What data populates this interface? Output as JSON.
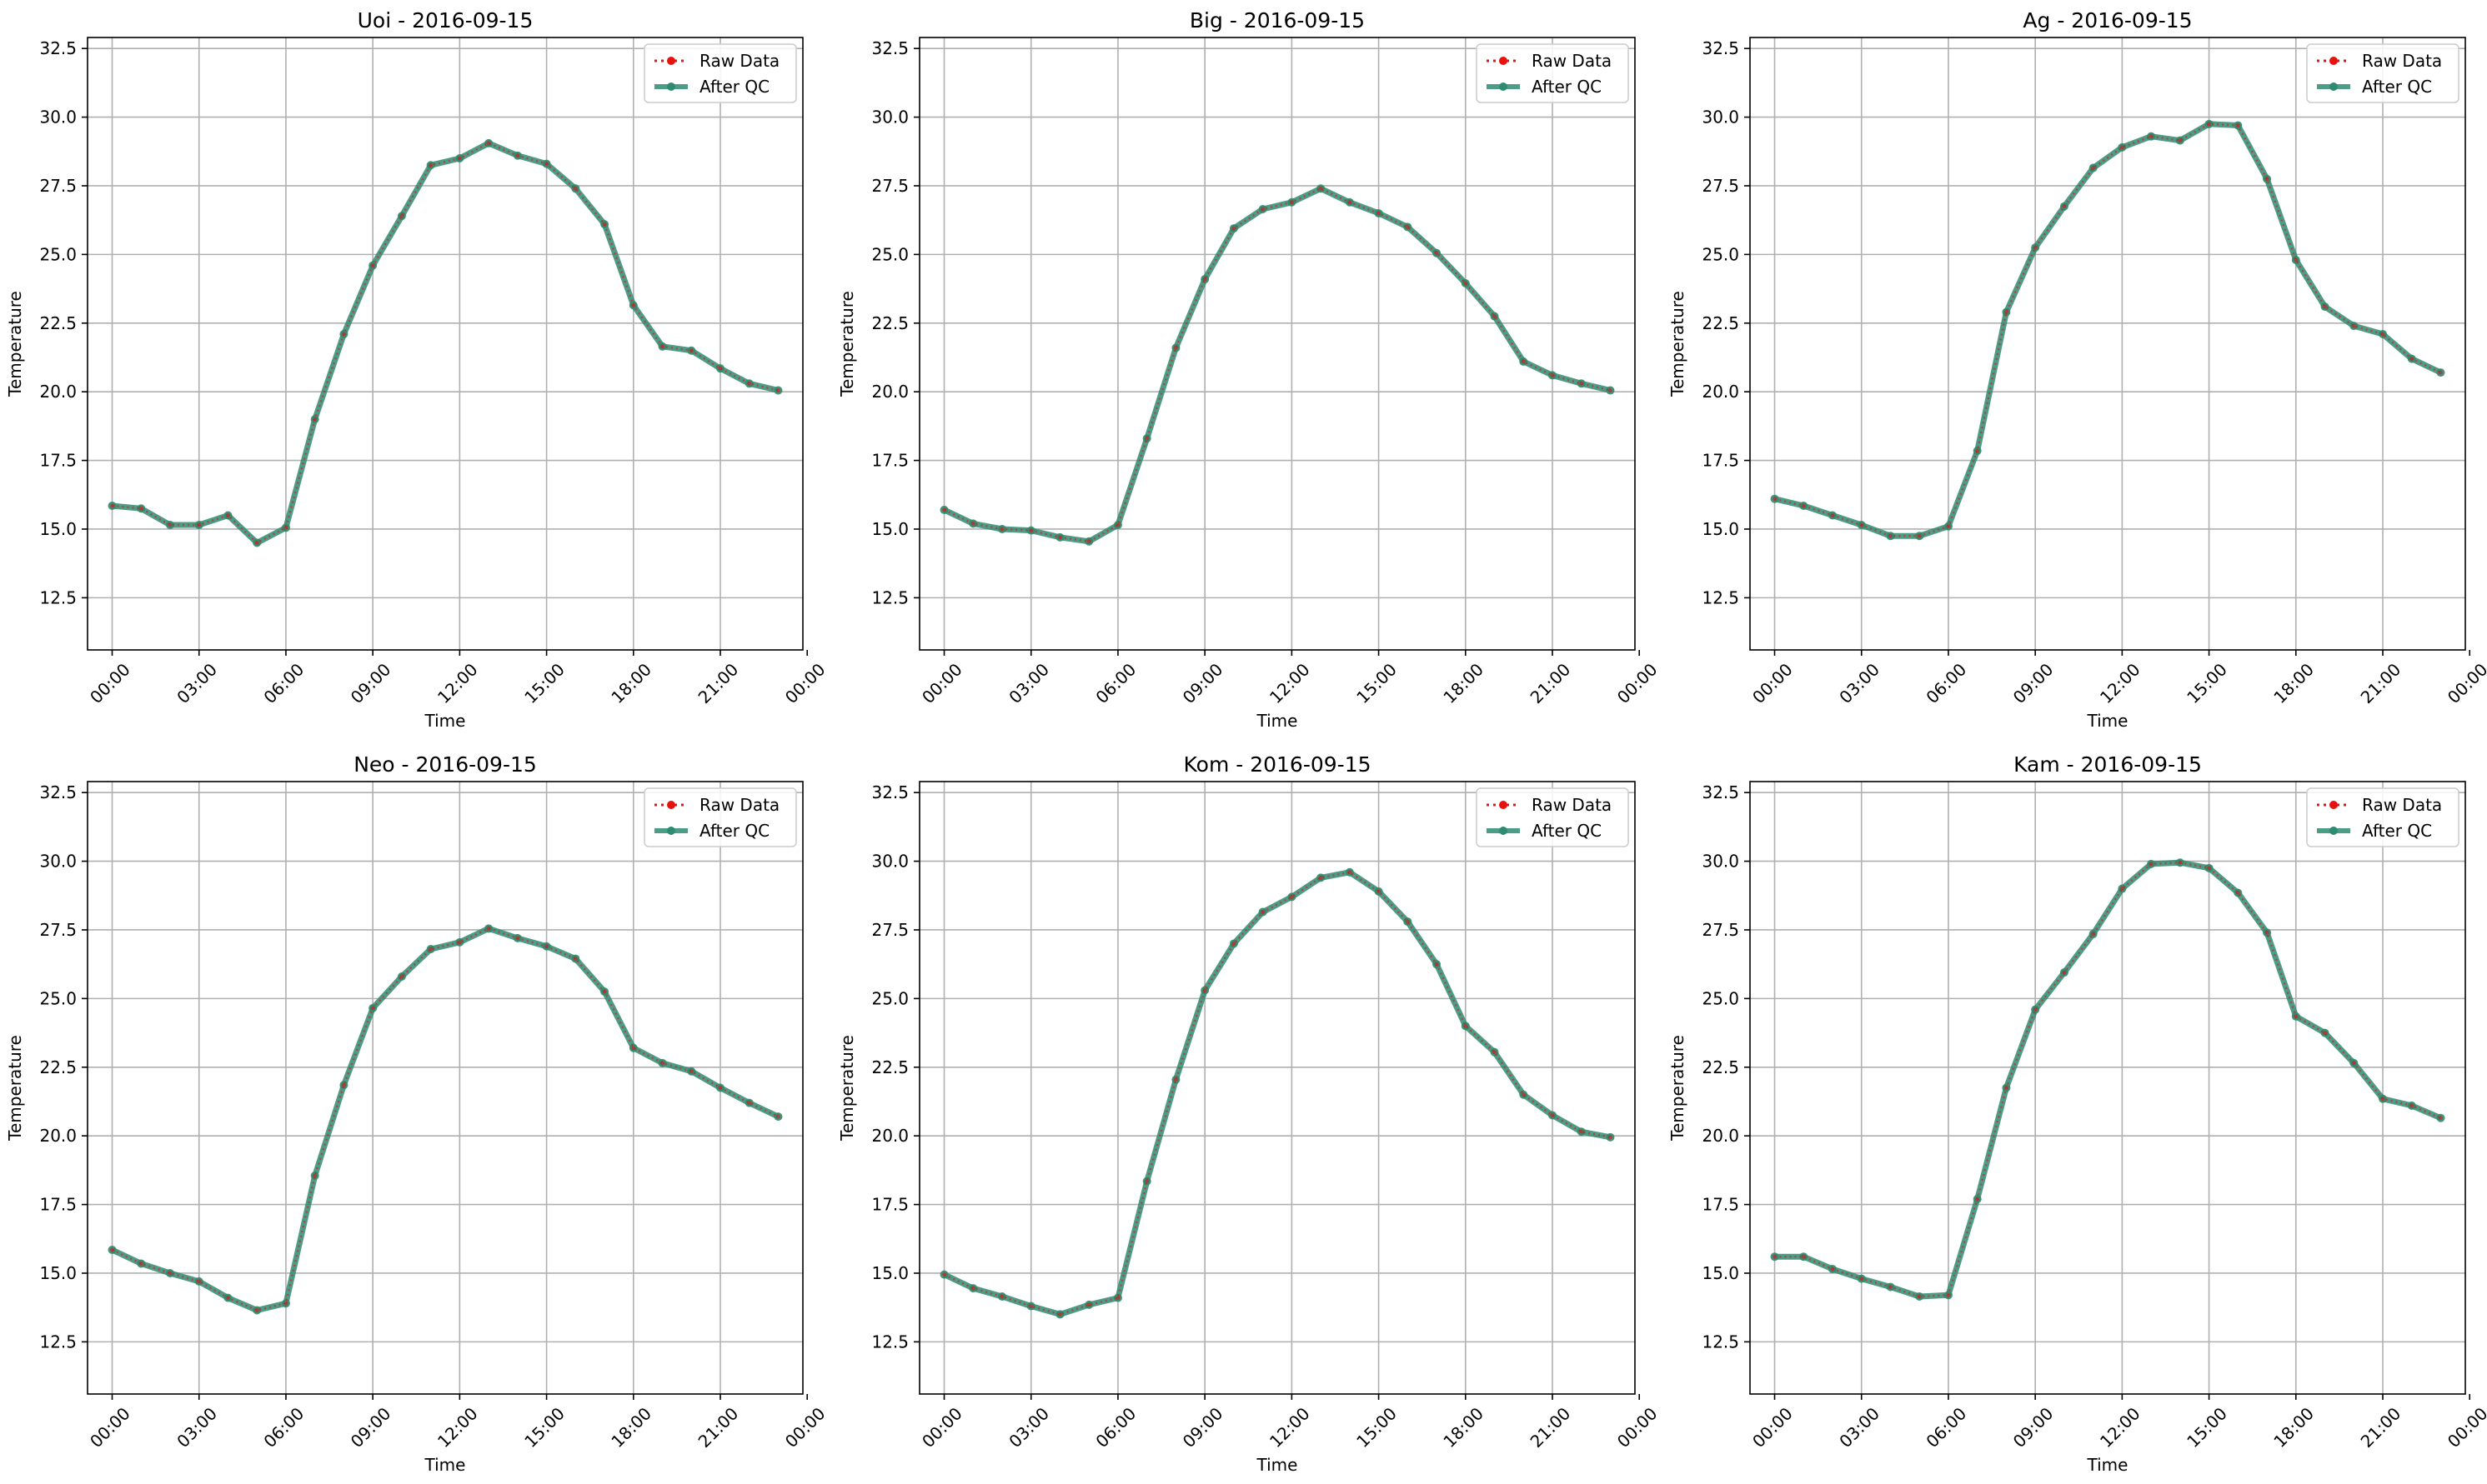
{
  "figure": {
    "background": "#ffffff"
  },
  "style": {
    "raw_color": "#e8120c",
    "qc_color": "#2e8b72",
    "grid_color": "#b0b0b0"
  },
  "chart_data": [
    {
      "type": "line",
      "title": "Uoi - 2016-09-15",
      "xlabel": "Time",
      "ylabel": "Temperature",
      "ylim": [
        10.6,
        32.9
      ],
      "xlim": [
        -0.85,
        23.85
      ],
      "yticks": [
        12.5,
        15.0,
        17.5,
        20.0,
        22.5,
        25.0,
        27.5,
        30.0,
        32.5
      ],
      "xticks": [
        {
          "x": 0,
          "label": "00:00"
        },
        {
          "x": 3,
          "label": "03:00"
        },
        {
          "x": 6,
          "label": "06:00"
        },
        {
          "x": 9,
          "label": "09:00"
        },
        {
          "x": 12,
          "label": "12:00"
        },
        {
          "x": 15,
          "label": "15:00"
        },
        {
          "x": 18,
          "label": "18:00"
        },
        {
          "x": 21,
          "label": "21:00"
        },
        {
          "x": 24,
          "label": "00:00"
        }
      ],
      "grid": true,
      "legend": "top-right",
      "x": [
        0,
        1,
        2,
        3,
        4,
        5,
        6,
        7,
        8,
        9,
        10,
        11,
        12,
        13,
        14,
        15,
        16,
        17,
        18,
        19,
        20,
        21,
        22,
        23
      ],
      "series": [
        {
          "name": "Raw Data",
          "values": [
            15.85,
            15.75,
            15.15,
            15.15,
            15.5,
            14.5,
            15.05,
            19.0,
            22.1,
            24.6,
            26.4,
            28.25,
            28.5,
            29.05,
            28.6,
            28.3,
            27.4,
            26.1,
            23.15,
            21.65,
            21.5,
            20.85,
            20.3,
            20.05
          ]
        },
        {
          "name": "After QC",
          "values": [
            15.85,
            15.75,
            15.15,
            15.15,
            15.5,
            14.5,
            15.05,
            19.0,
            22.1,
            24.6,
            26.4,
            28.25,
            28.5,
            29.05,
            28.6,
            28.3,
            27.4,
            26.1,
            23.15,
            21.65,
            21.5,
            20.85,
            20.3,
            20.05
          ]
        }
      ]
    },
    {
      "type": "line",
      "title": "Big - 2016-09-15",
      "xlabel": "Time",
      "ylabel": "Temperature",
      "ylim": [
        10.6,
        32.9
      ],
      "xlim": [
        -0.85,
        23.85
      ],
      "yticks": [
        12.5,
        15.0,
        17.5,
        20.0,
        22.5,
        25.0,
        27.5,
        30.0,
        32.5
      ],
      "xticks": [
        {
          "x": 0,
          "label": "00:00"
        },
        {
          "x": 3,
          "label": "03:00"
        },
        {
          "x": 6,
          "label": "06:00"
        },
        {
          "x": 9,
          "label": "09:00"
        },
        {
          "x": 12,
          "label": "12:00"
        },
        {
          "x": 15,
          "label": "15:00"
        },
        {
          "x": 18,
          "label": "18:00"
        },
        {
          "x": 21,
          "label": "21:00"
        },
        {
          "x": 24,
          "label": "00:00"
        }
      ],
      "grid": true,
      "legend": "top-right",
      "x": [
        0,
        1,
        2,
        3,
        4,
        5,
        6,
        7,
        8,
        9,
        10,
        11,
        12,
        13,
        14,
        15,
        16,
        17,
        18,
        19,
        20,
        21,
        22,
        23
      ],
      "series": [
        {
          "name": "Raw Data",
          "values": [
            15.7,
            15.2,
            15.0,
            14.95,
            14.7,
            14.55,
            15.15,
            18.3,
            21.6,
            24.1,
            25.95,
            26.65,
            26.9,
            27.4,
            26.9,
            26.5,
            26.0,
            25.05,
            23.95,
            22.75,
            21.1,
            20.6,
            20.3,
            20.05
          ]
        },
        {
          "name": "After QC",
          "values": [
            15.7,
            15.2,
            15.0,
            14.95,
            14.7,
            14.55,
            15.15,
            18.3,
            21.6,
            24.1,
            25.95,
            26.65,
            26.9,
            27.4,
            26.9,
            26.5,
            26.0,
            25.05,
            23.95,
            22.75,
            21.1,
            20.6,
            20.3,
            20.05
          ]
        }
      ]
    },
    {
      "type": "line",
      "title": "Ag - 2016-09-15",
      "xlabel": "Time",
      "ylabel": "Temperature",
      "ylim": [
        10.6,
        32.9
      ],
      "xlim": [
        -0.85,
        23.85
      ],
      "yticks": [
        12.5,
        15.0,
        17.5,
        20.0,
        22.5,
        25.0,
        27.5,
        30.0,
        32.5
      ],
      "xticks": [
        {
          "x": 0,
          "label": "00:00"
        },
        {
          "x": 3,
          "label": "03:00"
        },
        {
          "x": 6,
          "label": "06:00"
        },
        {
          "x": 9,
          "label": "09:00"
        },
        {
          "x": 12,
          "label": "12:00"
        },
        {
          "x": 15,
          "label": "15:00"
        },
        {
          "x": 18,
          "label": "18:00"
        },
        {
          "x": 21,
          "label": "21:00"
        },
        {
          "x": 24,
          "label": "00:00"
        }
      ],
      "grid": true,
      "legend": "top-right",
      "x": [
        0,
        1,
        2,
        3,
        4,
        5,
        6,
        7,
        8,
        9,
        10,
        11,
        12,
        13,
        14,
        15,
        16,
        17,
        18,
        19,
        20,
        21,
        22,
        23
      ],
      "series": [
        {
          "name": "Raw Data",
          "values": [
            16.1,
            15.85,
            15.5,
            15.15,
            14.75,
            14.75,
            15.1,
            17.85,
            22.9,
            25.25,
            26.75,
            28.15,
            28.9,
            29.3,
            29.15,
            29.75,
            29.7,
            27.75,
            24.8,
            23.1,
            22.4,
            22.1,
            21.2,
            20.7
          ]
        },
        {
          "name": "After QC",
          "values": [
            16.1,
            15.85,
            15.5,
            15.15,
            14.75,
            14.75,
            15.1,
            17.85,
            22.9,
            25.25,
            26.75,
            28.15,
            28.9,
            29.3,
            29.15,
            29.75,
            29.7,
            27.75,
            24.8,
            23.1,
            22.4,
            22.1,
            21.2,
            20.7
          ]
        }
      ]
    },
    {
      "type": "line",
      "title": "Neo - 2016-09-15",
      "xlabel": "Time",
      "ylabel": "Temperature",
      "ylim": [
        10.6,
        32.9
      ],
      "xlim": [
        -0.85,
        23.85
      ],
      "yticks": [
        12.5,
        15.0,
        17.5,
        20.0,
        22.5,
        25.0,
        27.5,
        30.0,
        32.5
      ],
      "xticks": [
        {
          "x": 0,
          "label": "00:00"
        },
        {
          "x": 3,
          "label": "03:00"
        },
        {
          "x": 6,
          "label": "06:00"
        },
        {
          "x": 9,
          "label": "09:00"
        },
        {
          "x": 12,
          "label": "12:00"
        },
        {
          "x": 15,
          "label": "15:00"
        },
        {
          "x": 18,
          "label": "18:00"
        },
        {
          "x": 21,
          "label": "21:00"
        },
        {
          "x": 24,
          "label": "00:00"
        }
      ],
      "grid": true,
      "legend": "top-right",
      "x": [
        0,
        1,
        2,
        3,
        4,
        5,
        6,
        7,
        8,
        9,
        10,
        11,
        12,
        13,
        14,
        15,
        16,
        17,
        18,
        19,
        20,
        21,
        22,
        23
      ],
      "series": [
        {
          "name": "Raw Data",
          "values": [
            15.85,
            15.35,
            15.0,
            14.7,
            14.1,
            13.65,
            13.9,
            18.55,
            21.85,
            24.65,
            25.8,
            26.8,
            27.05,
            27.55,
            27.2,
            26.9,
            26.45,
            25.25,
            23.2,
            22.65,
            22.35,
            21.75,
            21.2,
            20.7
          ]
        },
        {
          "name": "After QC",
          "values": [
            15.85,
            15.35,
            15.0,
            14.7,
            14.1,
            13.65,
            13.9,
            18.55,
            21.85,
            24.65,
            25.8,
            26.8,
            27.05,
            27.55,
            27.2,
            26.9,
            26.45,
            25.25,
            23.2,
            22.65,
            22.35,
            21.75,
            21.2,
            20.7
          ]
        }
      ]
    },
    {
      "type": "line",
      "title": "Kom - 2016-09-15",
      "xlabel": "Time",
      "ylabel": "Temperature",
      "ylim": [
        10.6,
        32.9
      ],
      "xlim": [
        -0.85,
        23.85
      ],
      "yticks": [
        12.5,
        15.0,
        17.5,
        20.0,
        22.5,
        25.0,
        27.5,
        30.0,
        32.5
      ],
      "xticks": [
        {
          "x": 0,
          "label": "00:00"
        },
        {
          "x": 3,
          "label": "03:00"
        },
        {
          "x": 6,
          "label": "06:00"
        },
        {
          "x": 9,
          "label": "09:00"
        },
        {
          "x": 12,
          "label": "12:00"
        },
        {
          "x": 15,
          "label": "15:00"
        },
        {
          "x": 18,
          "label": "18:00"
        },
        {
          "x": 21,
          "label": "21:00"
        },
        {
          "x": 24,
          "label": "00:00"
        }
      ],
      "grid": true,
      "legend": "top-right",
      "x": [
        0,
        1,
        2,
        3,
        4,
        5,
        6,
        7,
        8,
        9,
        10,
        11,
        12,
        13,
        14,
        15,
        16,
        17,
        18,
        19,
        20,
        21,
        22,
        23
      ],
      "series": [
        {
          "name": "Raw Data",
          "values": [
            14.95,
            14.45,
            14.15,
            13.8,
            13.5,
            13.85,
            14.1,
            18.35,
            22.05,
            25.3,
            27.0,
            28.15,
            28.7,
            29.4,
            29.6,
            28.9,
            27.8,
            26.25,
            24.0,
            23.05,
            21.5,
            20.75,
            20.15,
            19.95
          ]
        },
        {
          "name": "After QC",
          "values": [
            14.95,
            14.45,
            14.15,
            13.8,
            13.5,
            13.85,
            14.1,
            18.35,
            22.05,
            25.3,
            27.0,
            28.15,
            28.7,
            29.4,
            29.6,
            28.9,
            27.8,
            26.25,
            24.0,
            23.05,
            21.5,
            20.75,
            20.15,
            19.95
          ]
        }
      ]
    },
    {
      "type": "line",
      "title": "Kam - 2016-09-15",
      "xlabel": "Time",
      "ylabel": "Temperature",
      "ylim": [
        10.6,
        32.9
      ],
      "xlim": [
        -0.85,
        23.85
      ],
      "yticks": [
        12.5,
        15.0,
        17.5,
        20.0,
        22.5,
        25.0,
        27.5,
        30.0,
        32.5
      ],
      "xticks": [
        {
          "x": 0,
          "label": "00:00"
        },
        {
          "x": 3,
          "label": "03:00"
        },
        {
          "x": 6,
          "label": "06:00"
        },
        {
          "x": 9,
          "label": "09:00"
        },
        {
          "x": 12,
          "label": "12:00"
        },
        {
          "x": 15,
          "label": "15:00"
        },
        {
          "x": 18,
          "label": "18:00"
        },
        {
          "x": 21,
          "label": "21:00"
        },
        {
          "x": 24,
          "label": "00:00"
        }
      ],
      "grid": true,
      "legend": "top-right",
      "x": [
        0,
        1,
        2,
        3,
        4,
        5,
        6,
        7,
        8,
        9,
        10,
        11,
        12,
        13,
        14,
        15,
        16,
        17,
        18,
        19,
        20,
        21,
        22,
        23
      ],
      "series": [
        {
          "name": "Raw Data",
          "values": [
            15.6,
            15.6,
            15.15,
            14.8,
            14.5,
            14.15,
            14.2,
            17.7,
            21.75,
            24.6,
            25.95,
            27.35,
            29.0,
            29.9,
            29.95,
            29.75,
            28.85,
            27.4,
            24.35,
            23.75,
            22.65,
            21.35,
            21.1,
            20.65
          ]
        },
        {
          "name": "After QC",
          "values": [
            15.6,
            15.6,
            15.15,
            14.8,
            14.5,
            14.15,
            14.2,
            17.7,
            21.75,
            24.6,
            25.95,
            27.35,
            29.0,
            29.9,
            29.95,
            29.75,
            28.85,
            27.4,
            24.35,
            23.75,
            22.65,
            21.35,
            21.1,
            20.65
          ]
        }
      ]
    }
  ]
}
